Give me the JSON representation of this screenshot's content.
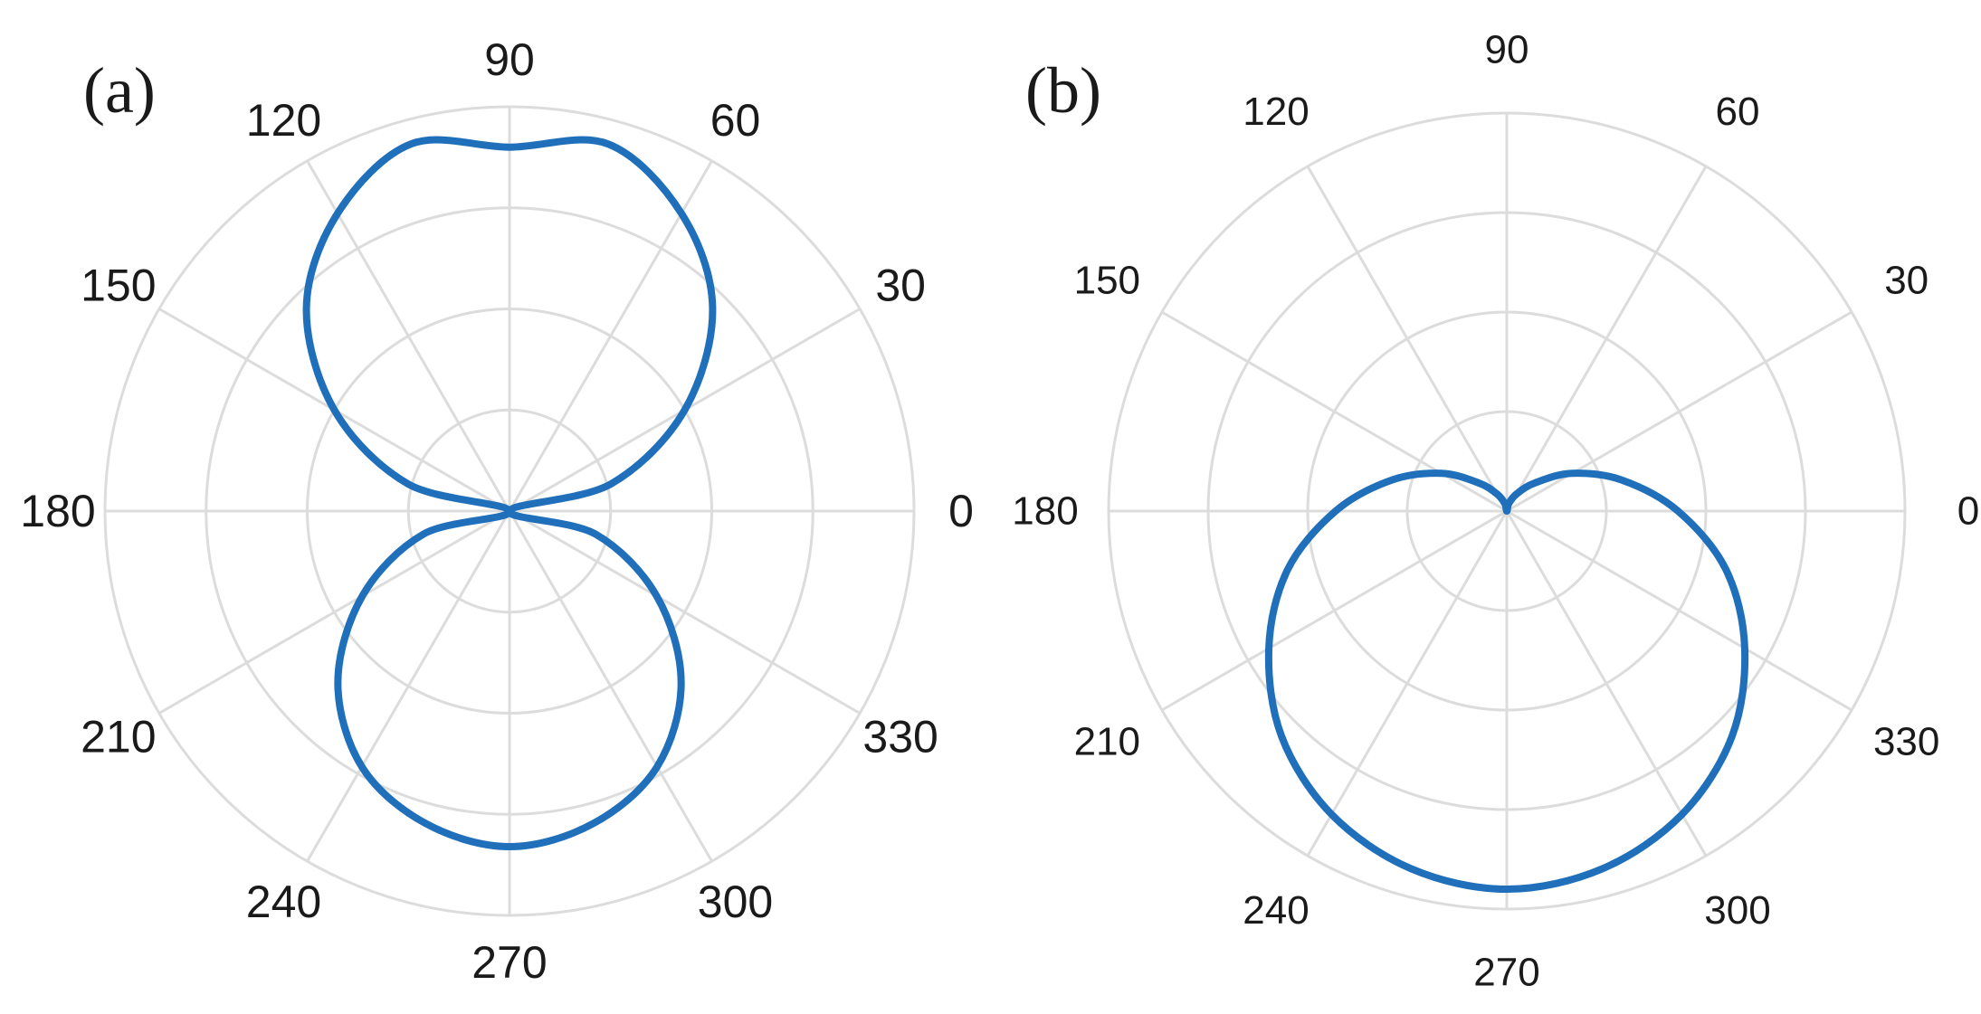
{
  "colors": {
    "curve": "#1f6fba",
    "grid": "#dcdcdc",
    "text": "#1a1a1a"
  },
  "chart_data": [
    {
      "type": "polar",
      "panel_label": "(a)",
      "theta_ticks": [
        "0",
        "30",
        "60",
        "90",
        "120",
        "150",
        "180",
        "210",
        "240",
        "270",
        "300",
        "330"
      ],
      "theta_unit": "degrees",
      "r_grid_rings": 4,
      "r_range": [
        0,
        1
      ],
      "grid": true,
      "series": [
        {
          "shape": "figure-eight lobes along 90/270",
          "points": [
            {
              "theta": 0,
              "r": 0.0
            },
            {
              "theta": 15,
              "r": 0.26
            },
            {
              "theta": 30,
              "r": 0.5
            },
            {
              "theta": 45,
              "r": 0.71
            },
            {
              "theta": 60,
              "r": 0.85
            },
            {
              "theta": 75,
              "r": 0.94
            },
            {
              "theta": 90,
              "r": 0.9
            },
            {
              "theta": 105,
              "r": 0.94
            },
            {
              "theta": 120,
              "r": 0.85
            },
            {
              "theta": 135,
              "r": 0.71
            },
            {
              "theta": 150,
              "r": 0.5
            },
            {
              "theta": 165,
              "r": 0.26
            },
            {
              "theta": 180,
              "r": 0.0
            },
            {
              "theta": 195,
              "r": 0.22
            },
            {
              "theta": 210,
              "r": 0.42
            },
            {
              "theta": 225,
              "r": 0.6
            },
            {
              "theta": 240,
              "r": 0.73
            },
            {
              "theta": 255,
              "r": 0.8
            },
            {
              "theta": 270,
              "r": 0.83
            },
            {
              "theta": 285,
              "r": 0.8
            },
            {
              "theta": 300,
              "r": 0.73
            },
            {
              "theta": 315,
              "r": 0.6
            },
            {
              "theta": 330,
              "r": 0.42
            },
            {
              "theta": 345,
              "r": 0.22
            }
          ]
        }
      ]
    },
    {
      "type": "polar",
      "panel_label": "(b)",
      "theta_ticks": [
        "0",
        "30",
        "60",
        "90",
        "120",
        "150",
        "180",
        "210",
        "240",
        "270",
        "300",
        "330"
      ],
      "theta_unit": "degrees",
      "r_grid_rings": 4,
      "r_range": [
        0,
        1
      ],
      "grid": true,
      "series": [
        {
          "shape": "cardioid pointing toward 270",
          "points": [
            {
              "theta": 0,
              "r": 0.43
            },
            {
              "theta": 15,
              "r": 0.3
            },
            {
              "theta": 30,
              "r": 0.19
            },
            {
              "theta": 45,
              "r": 0.1
            },
            {
              "theta": 60,
              "r": 0.05
            },
            {
              "theta": 75,
              "r": 0.02
            },
            {
              "theta": 90,
              "r": 0.0
            },
            {
              "theta": 105,
              "r": 0.02
            },
            {
              "theta": 120,
              "r": 0.05
            },
            {
              "theta": 135,
              "r": 0.1
            },
            {
              "theta": 150,
              "r": 0.19
            },
            {
              "theta": 165,
              "r": 0.3
            },
            {
              "theta": 180,
              "r": 0.43
            },
            {
              "theta": 195,
              "r": 0.57
            },
            {
              "theta": 210,
              "r": 0.69
            },
            {
              "theta": 225,
              "r": 0.8
            },
            {
              "theta": 240,
              "r": 0.88
            },
            {
              "theta": 255,
              "r": 0.93
            },
            {
              "theta": 270,
              "r": 0.95
            },
            {
              "theta": 285,
              "r": 0.93
            },
            {
              "theta": 300,
              "r": 0.88
            },
            {
              "theta": 315,
              "r": 0.8
            },
            {
              "theta": 330,
              "r": 0.69
            },
            {
              "theta": 345,
              "r": 0.57
            }
          ]
        }
      ]
    }
  ]
}
